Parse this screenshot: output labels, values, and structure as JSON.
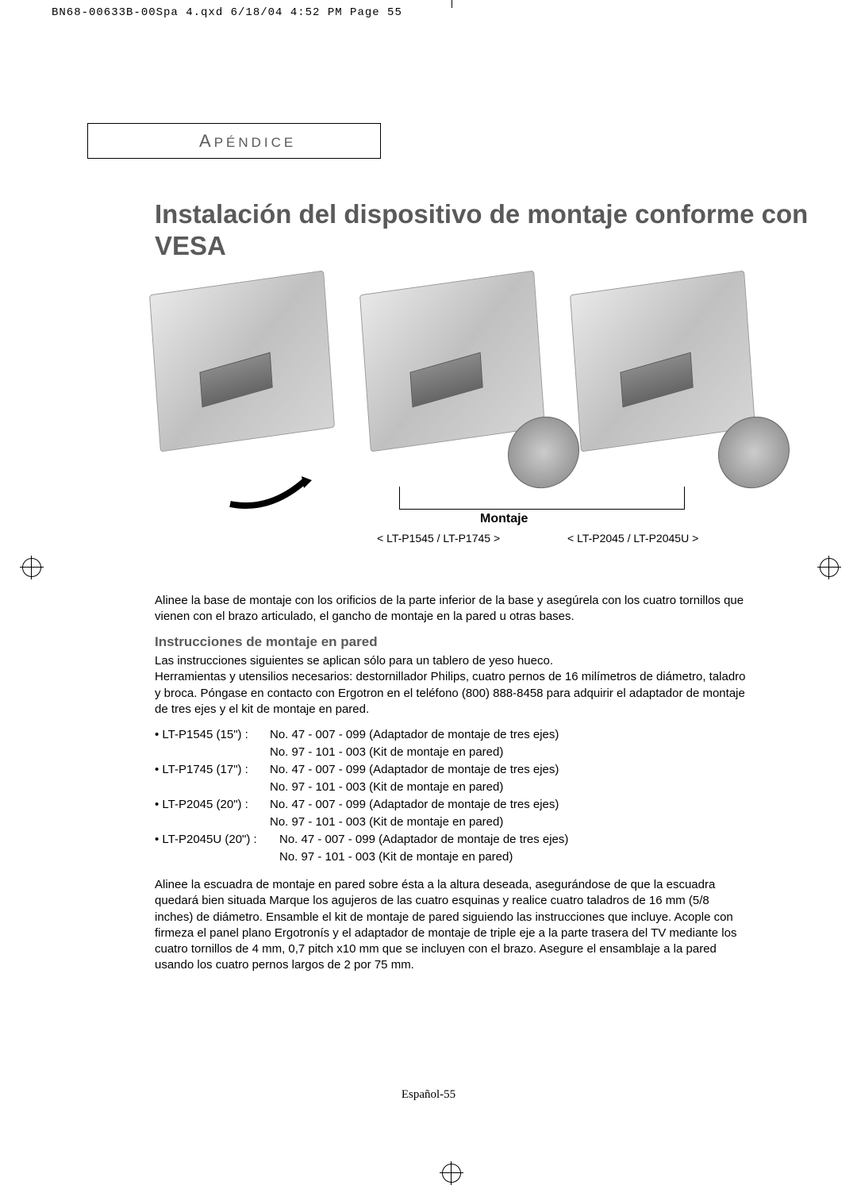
{
  "header": {
    "file_info": "BN68-00633B-00Spa 4.qxd  6/18/04 4:52 PM  Page 55"
  },
  "section": {
    "label_first": "A",
    "label_rest": "PÉNDICE"
  },
  "title": "Instalación del dispositivo de montaje conforme con VESA",
  "images": {
    "montaje_label": "Montaje",
    "caption_left": "< LT-P1545 / LT-P1745 >",
    "caption_right": "<  LT-P2045 / LT-P2045U >"
  },
  "intro": "Alinee la base de montaje con los orificios de la parte inferior de la base y asegúrela con los cuatro tornillos que vienen con el brazo articulado, el gancho de montaje en la pared u otras bases.",
  "subheading": "Instrucciones de montaje en pared",
  "instructions": "Las instrucciones siguientes se aplican sólo para un tablero de yeso hueco.\nHerramientas y utensilios necesarios: destornillador Philips, cuatro pernos de 16 milímetros de diámetro, taladro y broca. Póngase en contacto con Ergotron en el teléfono (800) 888-8458 para adquirir el adaptador de montaje de tres ejes y el kit de montaje en pared.",
  "kits": [
    {
      "model": "• LT-P1545 (15\") :",
      "adapter": "No. 47 - 007 - 099 (Adaptador de montaje de tres ejes)",
      "kit": "No. 97 - 101 - 003 (Kit de montaje en pared)"
    },
    {
      "model": "• LT-P1745 (17\") :",
      "adapter": "No. 47 - 007 - 099 (Adaptador de montaje de tres ejes)",
      "kit": "No. 97 - 101 - 003 (Kit de montaje en pared)"
    },
    {
      "model": "• LT-P2045 (20\") :",
      "adapter": "No. 47 - 007 - 099 (Adaptador de montaje de tres ejes)",
      "kit": "No. 97 - 101 - 003 (Kit de montaje en pared)"
    },
    {
      "model": "• LT-P2045U (20\") :",
      "adapter": "No. 47 - 007 - 099 (Adaptador de montaje de tres ejes)",
      "kit": "No. 97 - 101 - 003 (Kit de montaje en pared)",
      "tight": true
    }
  ],
  "final": "Alinee la escuadra de montaje en pared sobre ésta a la altura deseada, asegurándose de que la escuadra quedará bien situada Marque los agujeros de las cuatro esquinas y realice cuatro taladros de 16 mm (5/8 inches) de diámetro. Ensamble el kit de montaje de pared siguiendo las instrucciones que incluye. Acople con firmeza el panel plano Ergotronís y el adaptador de montaje de triple eje a la parte trasera del TV mediante los cuatro tornillos de 4 mm, 0,7 pitch x10 mm que se incluyen con el brazo. Asegure el ensamblaje a la pared usando los cuatro pernos largos de 2 por 75 mm.",
  "page_number": "Español-55",
  "colors": {
    "heading_gray": "#5a5a5a",
    "body_black": "#000000",
    "background": "#ffffff"
  },
  "typography": {
    "title_fontsize": 33,
    "body_fontsize": 15,
    "subheading_fontsize": 17,
    "section_label_fontsize": 17
  }
}
